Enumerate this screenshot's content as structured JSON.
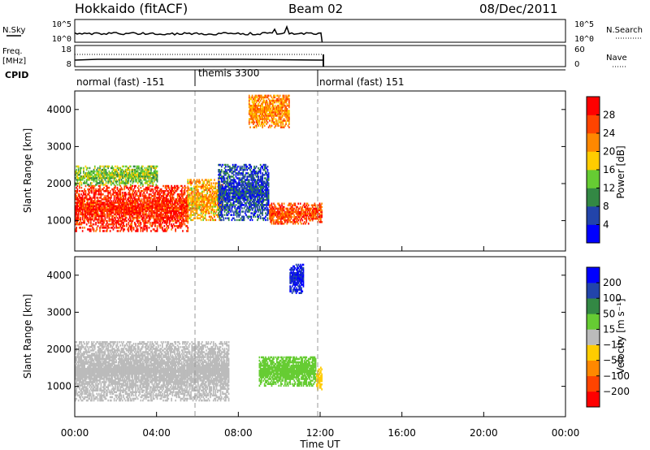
{
  "header": {
    "station": "Hokkaido (fitACF)",
    "beam": "Beam 02",
    "date": "08/Dec/2011"
  },
  "noise_panel": {
    "left_label": "N.Sky",
    "right_label": "N.Search",
    "left_ticks": [
      "10^5",
      "10^0"
    ],
    "right_ticks": [
      "10^5",
      "10^0"
    ]
  },
  "freq_panel": {
    "left_label_line1": "Freq.",
    "left_label_line2": "[MHz]",
    "right_label": "Nave",
    "left_ticks": [
      "18",
      "8"
    ],
    "right_ticks": [
      "60",
      "0"
    ]
  },
  "cpid_panel": {
    "label": "CPID",
    "segments": [
      {
        "name": "normal (fast) -151",
        "start_hour": 0,
        "end_hour": 6
      },
      {
        "name": "themis 3300",
        "start_hour": 6,
        "end_hour": 12.1
      },
      {
        "name": "normal (fast) 151",
        "start_hour": 12.1,
        "end_hour": 24
      }
    ]
  },
  "axes": {
    "ylabel": "Slant Range [km]",
    "xlabel": "Time UT",
    "y_ticks": [
      "1000",
      "2000",
      "3000",
      "4000"
    ],
    "x_ticks": [
      "00:00",
      "04:00",
      "08:00",
      "12:00",
      "16:00",
      "20:00",
      "00:00"
    ]
  },
  "power_colorbar": {
    "label": "Power [dB]",
    "ticks": [
      "4",
      "8",
      "12",
      "16",
      "20",
      "24",
      "28"
    ],
    "colors": [
      "#0000ff",
      "#2244aa",
      "#338844",
      "#66cc33",
      "#ffcc00",
      "#ff8800",
      "#ff4400",
      "#ff0000"
    ]
  },
  "velocity_colorbar": {
    "label": "Velocity [m s⁻¹]",
    "ticks": [
      "200",
      "100",
      "50",
      "15",
      "−15",
      "−50",
      "−100",
      "−200"
    ],
    "colors": [
      "#0000ff",
      "#2244aa",
      "#338844",
      "#66cc33",
      "#bbbbbb",
      "#ffcc00",
      "#ff8800",
      "#ff4400",
      "#ff0000"
    ]
  },
  "chart_data": {
    "type": "heatmap",
    "title": "Hokkaido (fitACF) Beam 02 08/Dec/2011",
    "xlabel": "Time UT",
    "ylabel": "Slant Range [km]",
    "xlim_hours": [
      0,
      24
    ],
    "ylim_km": [
      180,
      4500
    ],
    "data_end_hour": 12.1,
    "cpid_boundaries_hours": [
      6.0,
      12.1
    ],
    "power_regions": [
      {
        "t0": 0.0,
        "t1": 5.5,
        "r0": 700,
        "r1": 1950,
        "level_db": 28
      },
      {
        "t0": 0.0,
        "t1": 4.0,
        "r0": 1950,
        "r1": 2450,
        "level_db": 14
      },
      {
        "t0": 5.5,
        "t1": 7.2,
        "r0": 1000,
        "r1": 2100,
        "level_db": 20
      },
      {
        "t0": 7.0,
        "t1": 9.5,
        "r0": 1000,
        "r1": 2500,
        "level_db": 6
      },
      {
        "t0": 9.5,
        "t1": 12.1,
        "r0": 900,
        "r1": 1450,
        "level_db": 26
      },
      {
        "t0": 8.5,
        "t1": 10.5,
        "r0": 3500,
        "r1": 4400,
        "level_db": 22
      }
    ],
    "velocity_regions": [
      {
        "t0": 0.0,
        "t1": 7.5,
        "r0": 600,
        "r1": 2200,
        "velocity_ms": 0
      },
      {
        "t0": 9.0,
        "t1": 11.8,
        "r0": 1000,
        "r1": 1800,
        "velocity_ms": 40
      },
      {
        "t0": 10.5,
        "t1": 11.2,
        "r0": 3500,
        "r1": 4300,
        "velocity_ms": 200
      },
      {
        "t0": 11.8,
        "t1": 12.1,
        "r0": 900,
        "r1": 1500,
        "velocity_ms": -40
      }
    ]
  }
}
